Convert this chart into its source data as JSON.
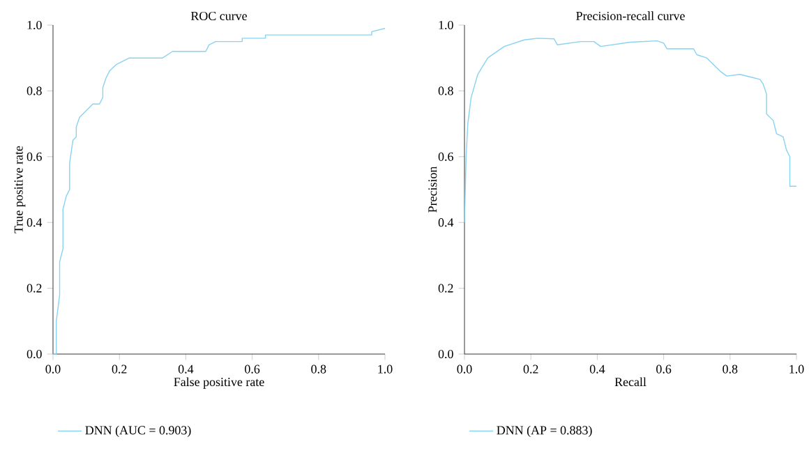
{
  "chart_data": [
    {
      "type": "line",
      "title": "ROC curve",
      "xlabel": "False positive rate",
      "ylabel": "True positive rate",
      "xlim": [
        0,
        1
      ],
      "ylim": [
        0,
        1
      ],
      "xticks": [
        {
          "value": 0,
          "label": "0.0"
        },
        {
          "value": 0.2,
          "label": "0.2"
        },
        {
          "value": 0.4,
          "label": "0.4"
        },
        {
          "value": 0.6,
          "label": "0.6"
        },
        {
          "value": 0.8,
          "label": "0.8"
        },
        {
          "value": 1,
          "label": "1.0"
        }
      ],
      "yticks": [
        {
          "value": 0,
          "label": "0.0"
        },
        {
          "value": 0.2,
          "label": "0.2"
        },
        {
          "value": 0.4,
          "label": "0.4"
        },
        {
          "value": 0.6,
          "label": "0.6"
        },
        {
          "value": 0.8,
          "label": "0.8"
        },
        {
          "value": 1,
          "label": "1.0"
        }
      ],
      "legend": "bottom",
      "series": [
        {
          "name": "DNN (AUC = 0.903)",
          "color": "#87d3f0",
          "x": [
            0,
            0.01,
            0.01,
            0.02,
            0.02,
            0.03,
            0.03,
            0.04,
            0.05,
            0.05,
            0.06,
            0.07,
            0.07,
            0.08,
            0.1,
            0.12,
            0.14,
            0.15,
            0.15,
            0.16,
            0.17,
            0.19,
            0.23,
            0.33,
            0.36,
            0.46,
            0.47,
            0.49,
            0.57,
            0.57,
            0.64,
            0.64,
            0.96,
            0.96,
            1.0
          ],
          "values": [
            0,
            0,
            0.1,
            0.18,
            0.28,
            0.32,
            0.44,
            0.48,
            0.5,
            0.58,
            0.65,
            0.66,
            0.69,
            0.72,
            0.74,
            0.76,
            0.76,
            0.78,
            0.81,
            0.84,
            0.86,
            0.88,
            0.9,
            0.9,
            0.92,
            0.92,
            0.94,
            0.95,
            0.95,
            0.96,
            0.96,
            0.97,
            0.97,
            0.98,
            0.99
          ]
        }
      ]
    },
    {
      "type": "line",
      "title": "Precision-recall curve",
      "xlabel": "Recall",
      "ylabel": "Precision",
      "xlim": [
        0,
        1
      ],
      "ylim": [
        0,
        1
      ],
      "xticks": [
        {
          "value": 0,
          "label": "0.0"
        },
        {
          "value": 0.2,
          "label": "0.2"
        },
        {
          "value": 0.4,
          "label": "0.4"
        },
        {
          "value": 0.6,
          "label": "0.6"
        },
        {
          "value": 0.8,
          "label": "0.8"
        },
        {
          "value": 1,
          "label": "1.0"
        }
      ],
      "yticks": [
        {
          "value": 0,
          "label": "0.0"
        },
        {
          "value": 0.2,
          "label": "0.2"
        },
        {
          "value": 0.4,
          "label": "0.4"
        },
        {
          "value": 0.6,
          "label": "0.6"
        },
        {
          "value": 0.8,
          "label": "0.8"
        },
        {
          "value": 1,
          "label": "1.0"
        }
      ],
      "legend": "bottom",
      "series": [
        {
          "name": "DNN (AP = 0.883)",
          "color": "#87d3f0",
          "x": [
            0,
            0.005,
            0.01,
            0.02,
            0.04,
            0.07,
            0.12,
            0.18,
            0.22,
            0.27,
            0.28,
            0.35,
            0.39,
            0.41,
            0.5,
            0.58,
            0.6,
            0.61,
            0.69,
            0.7,
            0.73,
            0.75,
            0.77,
            0.79,
            0.83,
            0.87,
            0.89,
            0.9,
            0.91,
            0.91,
            0.93,
            0.94,
            0.96,
            0.97,
            0.98,
            0.98,
            1.0
          ],
          "values": [
            0.4,
            0.6,
            0.7,
            0.78,
            0.85,
            0.9,
            0.935,
            0.955,
            0.96,
            0.958,
            0.94,
            0.95,
            0.95,
            0.935,
            0.948,
            0.952,
            0.945,
            0.928,
            0.928,
            0.91,
            0.9,
            0.88,
            0.86,
            0.845,
            0.85,
            0.84,
            0.835,
            0.82,
            0.79,
            0.73,
            0.71,
            0.67,
            0.66,
            0.62,
            0.6,
            0.51,
            0.51
          ]
        }
      ]
    }
  ]
}
